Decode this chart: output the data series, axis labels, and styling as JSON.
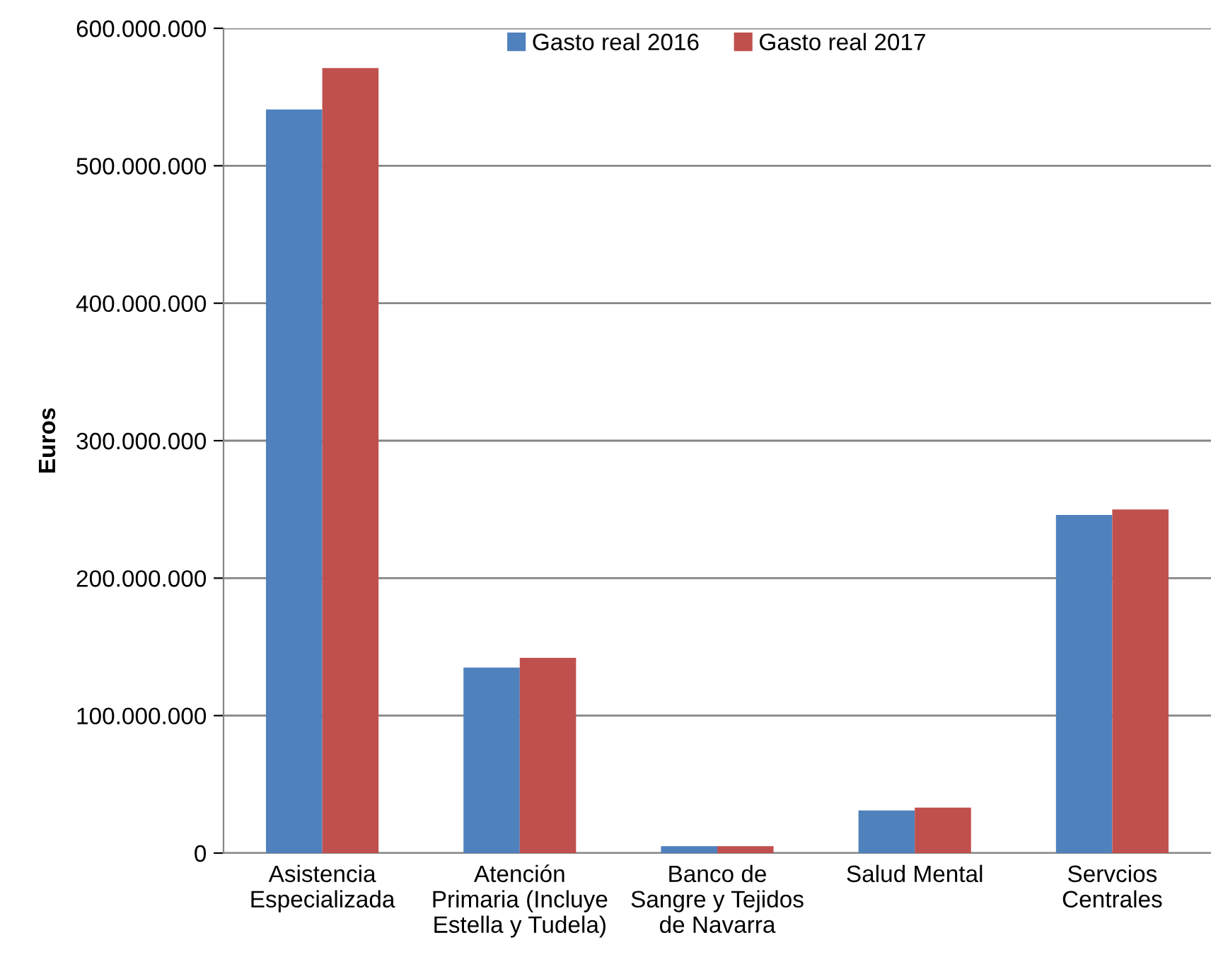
{
  "chart_data": {
    "type": "bar",
    "ylabel": "Euros",
    "categories": [
      "Asistencia\nEspecializada",
      "Atención\nPrimaria (Incluye\nEstella y Tudela)",
      "Banco de\nSangre y Tejidos\nde Navarra",
      "Salud Mental",
      "Servcios\nCentrales"
    ],
    "series": [
      {
        "name": "Gasto real 2016",
        "color": "#4f81bd",
        "values": [
          541000000,
          135000000,
          5000000,
          31000000,
          246000000
        ]
      },
      {
        "name": "Gasto real 2017",
        "color": "#c0504d",
        "values": [
          571000000,
          142000000,
          5000000,
          33000000,
          250000000
        ]
      }
    ],
    "ylim": [
      0,
      600000000
    ],
    "yticks": [
      {
        "value": 0,
        "label": "0"
      },
      {
        "value": 100000000,
        "label": "100.000.000"
      },
      {
        "value": 200000000,
        "label": "200.000.000"
      },
      {
        "value": 300000000,
        "label": "300.000.000"
      },
      {
        "value": 400000000,
        "label": "400.000.000"
      },
      {
        "value": 500000000,
        "label": "500.000.000"
      },
      {
        "value": 600000000,
        "label": "600.000.000"
      }
    ],
    "grid": "y",
    "legend": "top"
  }
}
